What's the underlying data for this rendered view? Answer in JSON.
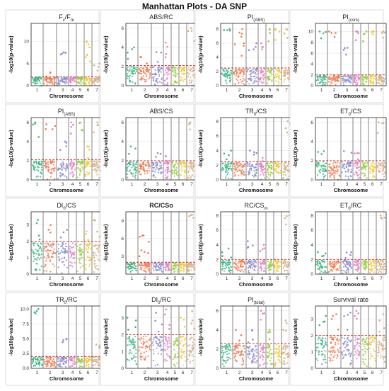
{
  "figure_title": "Manhattan Plots - DA SNP",
  "colors": {
    "chromosomes": [
      "#3cb883",
      "#f07a4e",
      "#8d8ecf",
      "#e77fc5",
      "#96cf3c",
      "#f6ca2e",
      "#d6b083"
    ],
    "threshold": "#d62728",
    "frame": "#222222",
    "grid": "#e3e3e3"
  },
  "chart_data": [
    {
      "type": "scatter",
      "title_parts": [
        {
          "t": "F"
        },
        {
          "t": "v",
          "sub": true
        },
        {
          "t": "/F"
        },
        {
          "t": "m",
          "sub": true
        }
      ],
      "xlabel": "Chromosome",
      "ylabel": "-log10(p-value)",
      "categories": [
        "1",
        "2",
        "3",
        "4",
        "5",
        "6",
        "7"
      ],
      "ylim": [
        0,
        14
      ],
      "yticks": [
        0,
        5,
        10
      ],
      "threshold": 2,
      "peaks": [
        [
          3,
          7.5
        ],
        [
          6,
          10
        ],
        [
          7,
          5
        ],
        [
          6,
          7
        ],
        [
          2,
          3
        ]
      ]
    },
    {
      "type": "scatter",
      "title_parts": [
        {
          "t": "ABS/RC"
        }
      ],
      "xlabel": "Chromosome",
      "ylabel": "-log10(p-value)",
      "categories": [
        "1",
        "2",
        "3",
        "4",
        "5",
        "6",
        "7"
      ],
      "ylim": [
        0,
        6.5
      ],
      "yticks": [
        0,
        2,
        4,
        6
      ],
      "threshold": 2.1,
      "peaks": [
        [
          1,
          4
        ],
        [
          2,
          3
        ],
        [
          3,
          3.5
        ],
        [
          4,
          4.5
        ],
        [
          7,
          6
        ]
      ]
    },
    {
      "type": "scatter",
      "title_parts": [
        {
          "t": "PI"
        },
        {
          "t": "(ABS)",
          "sub": true
        }
      ],
      "xlabel": "Chromosome",
      "ylabel": "-log10(p-value)",
      "categories": [
        "1",
        "2",
        "3",
        "4",
        "5",
        "6",
        "7"
      ],
      "ylim": [
        0,
        8.8
      ],
      "yticks": [
        0,
        2,
        4,
        6,
        8
      ],
      "threshold": 2.5,
      "peaks": [
        [
          1,
          8
        ],
        [
          2,
          8
        ],
        [
          2,
          6
        ],
        [
          3,
          6
        ],
        [
          4,
          6
        ],
        [
          5,
          8
        ],
        [
          6,
          8
        ],
        [
          7,
          8
        ]
      ]
    },
    {
      "type": "scatter",
      "title_parts": [
        {
          "t": "PI"
        },
        {
          "t": "(csm)",
          "sub": true
        }
      ],
      "xlabel": "Chromosome",
      "ylabel": "-log10(p-value)",
      "categories": [
        "1",
        "2",
        "3",
        "4",
        "5",
        "6",
        "7"
      ],
      "ylim": [
        0,
        11.5
      ],
      "yticks": [
        0,
        2,
        4,
        6,
        8,
        10
      ],
      "threshold": 2,
      "peaks": [
        [
          1,
          10
        ],
        [
          2,
          10
        ],
        [
          3,
          7
        ],
        [
          4,
          10
        ],
        [
          5,
          10
        ],
        [
          6,
          10
        ],
        [
          7,
          10
        ]
      ]
    },
    {
      "type": "scatter",
      "title_parts": [
        {
          "t": "PI"
        },
        {
          "t": "(ABS)",
          "sub": true
        }
      ],
      "xlabel": "Chromosome",
      "ylabel": "-log10(p-value)",
      "categories": [
        "1",
        "2",
        "3",
        "4",
        "5",
        "6",
        "7"
      ],
      "ylim": [
        0,
        6.5
      ],
      "yticks": [
        0,
        2,
        4,
        6
      ],
      "threshold": 2.1,
      "peaks": [
        [
          1,
          6
        ],
        [
          2,
          5.8
        ],
        [
          3,
          4
        ],
        [
          4,
          6
        ],
        [
          5,
          6
        ],
        [
          6,
          3.5
        ],
        [
          7,
          6
        ]
      ]
    },
    {
      "type": "scatter",
      "title_parts": [
        {
          "t": "ABS/CS"
        }
      ],
      "xlabel": "Chromosome",
      "ylabel": "-log10(p-value)",
      "categories": [
        "1",
        "2",
        "3",
        "4",
        "5",
        "6",
        "7"
      ],
      "ylim": [
        0,
        6.5
      ],
      "yticks": [
        0,
        2,
        4,
        6
      ],
      "threshold": 2,
      "peaks": [
        [
          1,
          3.5
        ],
        [
          3,
          2.8
        ],
        [
          4,
          2.5
        ],
        [
          7,
          6
        ]
      ]
    },
    {
      "type": "scatter",
      "title_parts": [
        {
          "t": "TR"
        },
        {
          "t": "0",
          "sub": true
        },
        {
          "t": "/CS"
        }
      ],
      "xlabel": "Chromosome",
      "ylabel": "-log10(p-value)",
      "categories": [
        "1",
        "2",
        "3",
        "4",
        "5",
        "6",
        "7"
      ],
      "ylim": [
        0,
        8.5
      ],
      "yticks": [
        0,
        2,
        4,
        6,
        8
      ],
      "threshold": 2.5,
      "peaks": [
        [
          1,
          4
        ],
        [
          3,
          4
        ],
        [
          4,
          3
        ],
        [
          7,
          8
        ]
      ]
    },
    {
      "type": "scatter",
      "title_parts": [
        {
          "t": "ET"
        },
        {
          "t": "0",
          "sub": true
        },
        {
          "t": "/CS"
        }
      ],
      "xlabel": "Chromosome",
      "ylabel": "-log10(p-value)",
      "categories": [
        "1",
        "2",
        "3",
        "4",
        "5",
        "6",
        "7"
      ],
      "ylim": [
        0,
        6.5
      ],
      "yticks": [
        0,
        2,
        4,
        6
      ],
      "threshold": 2,
      "peaks": [
        [
          1,
          3
        ],
        [
          3,
          3
        ],
        [
          4,
          2.8
        ],
        [
          7,
          6
        ]
      ]
    },
    {
      "type": "scatter",
      "title_parts": [
        {
          "t": "DI"
        },
        {
          "t": "0",
          "sub": true
        },
        {
          "t": "/CS"
        }
      ],
      "xlabel": "Chromosome",
      "ylabel": "-log10(p-value)",
      "categories": [
        "1",
        "2",
        "3",
        "4",
        "5",
        "6",
        "7"
      ],
      "ylim": [
        0,
        3.8
      ],
      "yticks": [
        0,
        1,
        2,
        3
      ],
      "threshold": 2,
      "peaks": [
        [
          1,
          3.3
        ],
        [
          2,
          3
        ],
        [
          3,
          2.7
        ],
        [
          6,
          2.6
        ],
        [
          7,
          3.3
        ]
      ]
    },
    {
      "type": "scatter",
      "bold_title": true,
      "title_parts": [
        {
          "t": "RC/CSo"
        }
      ],
      "xlabel": "Chromosome",
      "ylabel": "-log10(p-value)",
      "categories": [
        "1",
        "2",
        "3",
        "4",
        "5",
        "6",
        "7"
      ],
      "ylim": [
        0,
        10.5
      ],
      "yticks": [
        3,
        6,
        9
      ],
      "threshold": 2,
      "peaks": [
        [
          2,
          6.5
        ],
        [
          2,
          4
        ],
        [
          7,
          10
        ]
      ]
    },
    {
      "type": "scatter",
      "title_parts": [
        {
          "t": "RC/CS"
        },
        {
          "t": "m",
          "sub": true
        }
      ],
      "xlabel": "Chromosome",
      "ylabel": "-log10(p-value)",
      "categories": [
        "1",
        "2",
        "3",
        "4",
        "5",
        "6",
        "7"
      ],
      "ylim": [
        0,
        8.5
      ],
      "yticks": [
        0,
        2,
        4,
        6,
        8
      ],
      "threshold": 2,
      "peaks": [
        [
          1,
          3.5
        ],
        [
          3,
          4.5
        ],
        [
          4,
          4
        ],
        [
          7,
          8
        ]
      ]
    },
    {
      "type": "scatter",
      "title_parts": [
        {
          "t": "ET"
        },
        {
          "t": "0",
          "sub": true
        },
        {
          "t": "/RC"
        }
      ],
      "xlabel": "Chromosome",
      "ylabel": "-log10(p-value)",
      "categories": [
        "1",
        "2",
        "3",
        "4",
        "5",
        "6",
        "7"
      ],
      "ylim": [
        0,
        8.5
      ],
      "yticks": [
        0,
        2,
        4,
        6,
        8
      ],
      "threshold": 2,
      "peaks": [
        [
          1,
          3
        ],
        [
          3,
          3
        ],
        [
          7,
          8
        ]
      ]
    },
    {
      "type": "scatter",
      "title_parts": [
        {
          "t": "TR"
        },
        {
          "t": "0",
          "sub": true
        },
        {
          "t": "/RC"
        }
      ],
      "xlabel": "Chromosome",
      "ylabel": "-log10(p-value)",
      "categories": [
        "1",
        "2",
        "3",
        "4",
        "5",
        "6",
        "7"
      ],
      "ylim": [
        0,
        10.5
      ],
      "yticks": [
        0.0,
        2.5,
        5.0,
        7.5,
        10.0
      ],
      "ytick_decimals": 1,
      "threshold": 2,
      "peaks": [
        [
          1,
          10
        ],
        [
          3,
          5
        ],
        [
          7,
          4
        ]
      ]
    },
    {
      "type": "scatter",
      "title_parts": [
        {
          "t": "DI"
        },
        {
          "t": "0",
          "sub": true
        },
        {
          "t": "/RC"
        }
      ],
      "xlabel": "Chromosome",
      "ylabel": "-log10(p-value)",
      "categories": [
        "1",
        "2",
        "3",
        "4",
        "5",
        "6",
        "7"
      ],
      "ylim": [
        0,
        3.7
      ],
      "yticks": [
        0,
        1,
        2,
        3
      ],
      "threshold": 2,
      "peaks": [
        [
          1,
          3
        ],
        [
          3,
          3.3
        ],
        [
          4,
          3.5
        ],
        [
          6,
          3
        ],
        [
          7,
          3.4
        ]
      ]
    },
    {
      "type": "scatter",
      "title_parts": [
        {
          "t": "PI"
        },
        {
          "t": "(total)",
          "sub": true
        }
      ],
      "xlabel": "Chromosome",
      "ylabel": "-log10(p-value)",
      "categories": [
        "1",
        "2",
        "3",
        "4",
        "5",
        "6",
        "7"
      ],
      "ylim": [
        0,
        6.5
      ],
      "yticks": [
        0,
        2,
        4,
        6
      ],
      "threshold": 2.6,
      "peaks": [
        [
          2,
          4
        ],
        [
          3,
          4
        ],
        [
          4,
          6
        ],
        [
          5,
          4
        ],
        [
          7,
          5
        ]
      ]
    },
    {
      "type": "scatter",
      "title_parts": [
        {
          "t": "Survival rate"
        }
      ],
      "xlabel": "Chromosome",
      "ylabel": "-log10(p-value)",
      "categories": [
        "1",
        "2",
        "3",
        "4",
        "5",
        "6",
        "7"
      ],
      "ylim": [
        0,
        3.8
      ],
      "yticks": [
        0,
        1,
        2,
        3
      ],
      "threshold": 2,
      "peaks": [
        [
          1,
          3.2
        ],
        [
          2,
          3.3
        ],
        [
          3,
          3.4
        ],
        [
          4,
          3.5
        ],
        [
          7,
          3.3
        ]
      ]
    }
  ]
}
